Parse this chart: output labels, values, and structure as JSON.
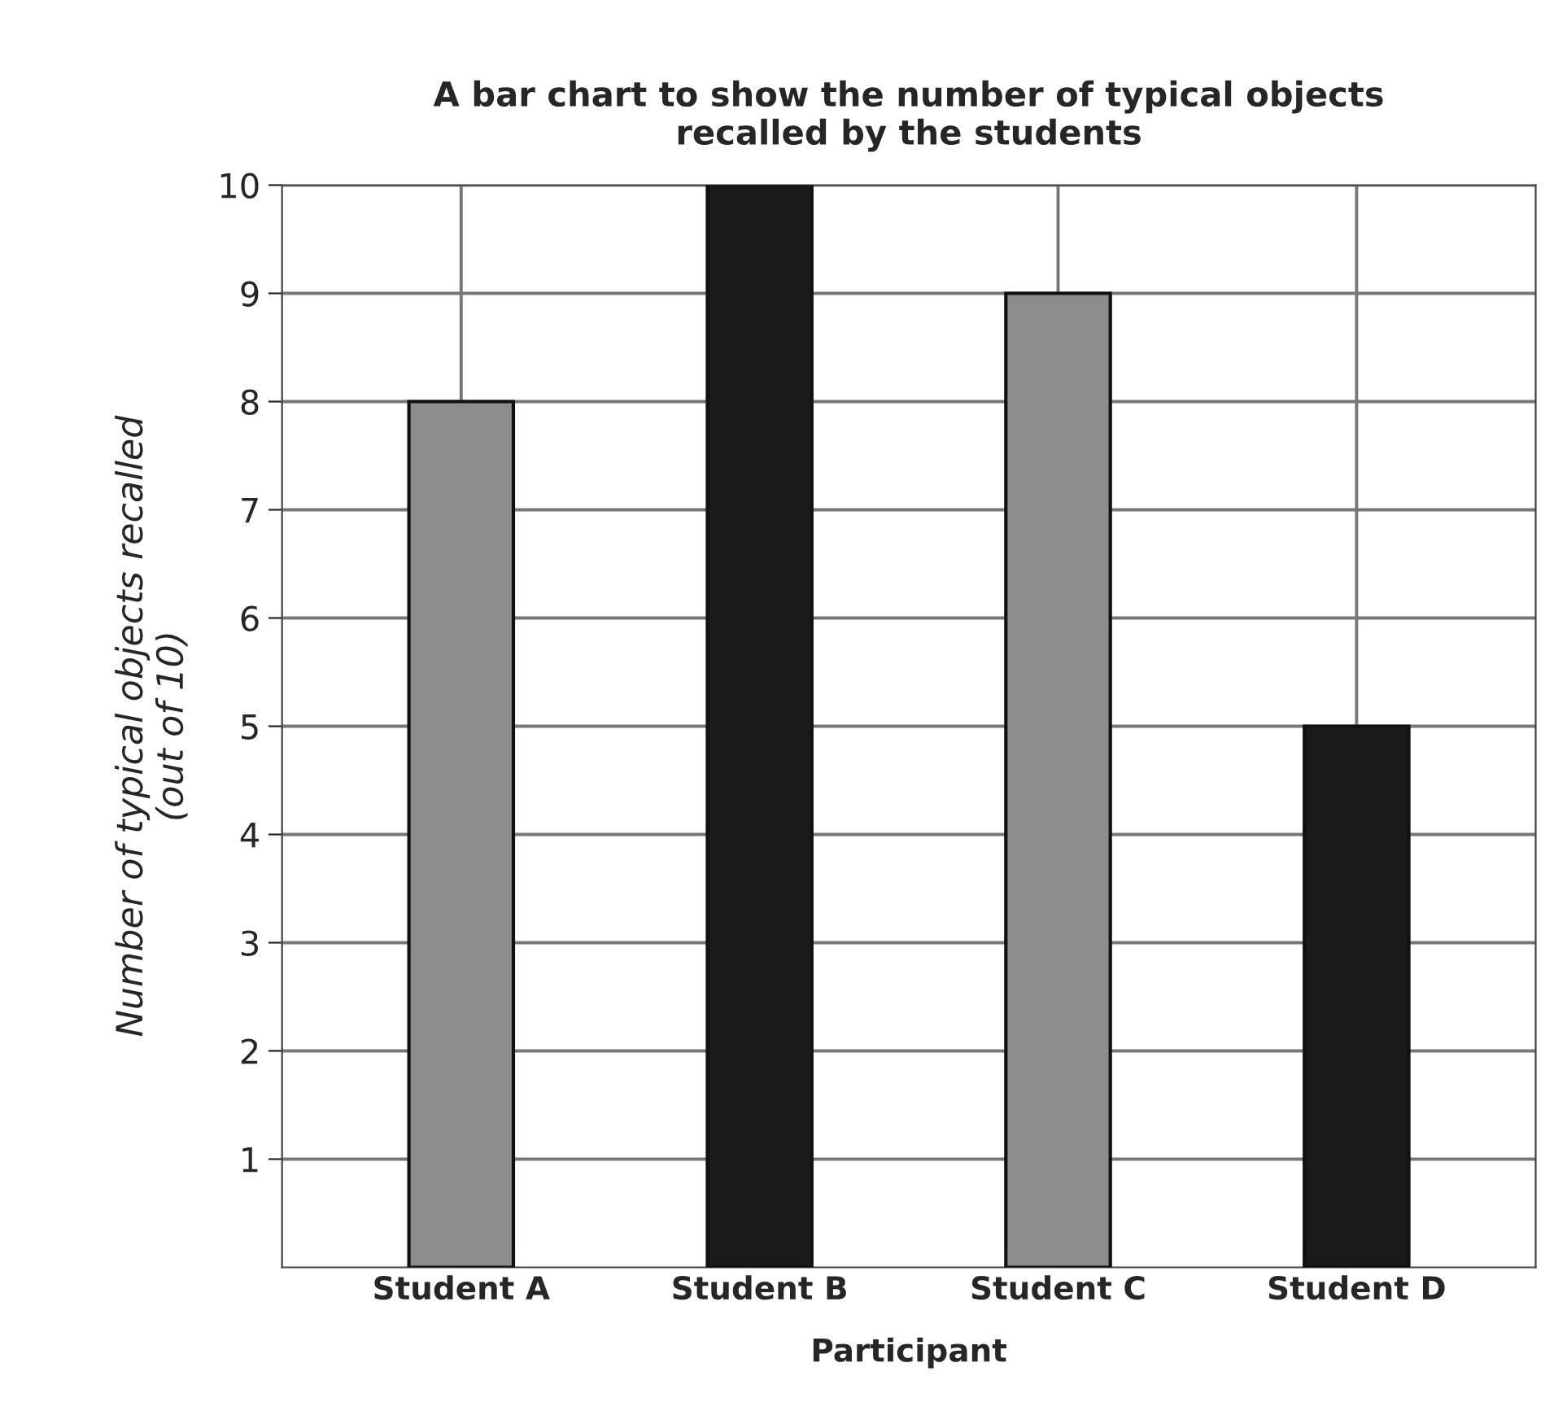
{
  "chart_data": {
    "type": "bar",
    "title": "A bar chart to show the number of typical objects\nrecalled by the students",
    "xlabel": "Participant",
    "ylabel": "Number of typical objects recalled\n(out of 10)",
    "categories": [
      "Student A",
      "Student B",
      "Student C",
      "Student D"
    ],
    "values": [
      8,
      10,
      9,
      5
    ],
    "colors": [
      "#8c8c8c",
      "#1a1a1a",
      "#8c8c8c",
      "#1a1a1a"
    ],
    "ylim": [
      0,
      10
    ],
    "yticks": [
      1,
      2,
      3,
      4,
      5,
      6,
      7,
      8,
      9,
      10
    ],
    "grid": true
  }
}
